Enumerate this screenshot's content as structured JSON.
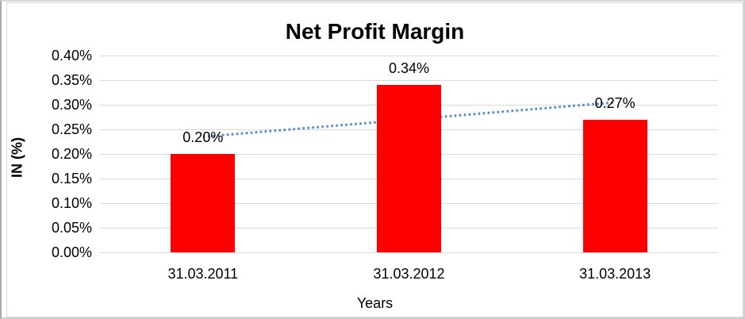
{
  "chart_data": {
    "type": "bar",
    "title": "Net Profit Margin",
    "xlabel": "Years",
    "ylabel": "IN (%)",
    "categories": [
      "31.03.2011",
      "31.03.2012",
      "31.03.2013"
    ],
    "values": [
      0.2,
      0.34,
      0.27
    ],
    "data_labels": [
      "0.20%",
      "0.34%",
      "0.27%"
    ],
    "ylim": [
      0.0,
      0.4
    ],
    "ytick_step": 0.05,
    "ytick_labels": [
      "0.00%",
      "0.05%",
      "0.10%",
      "0.15%",
      "0.20%",
      "0.25%",
      "0.30%",
      "0.35%",
      "0.40%"
    ],
    "grid": true,
    "legend": false,
    "bar_color": "#ff0000",
    "gridline_color": "#d9d9d9",
    "text_color": "#000000",
    "trendline": {
      "type": "linear",
      "style": "dotted",
      "color": "#4e8ac8",
      "start_value": 0.235,
      "end_value": 0.305
    }
  }
}
